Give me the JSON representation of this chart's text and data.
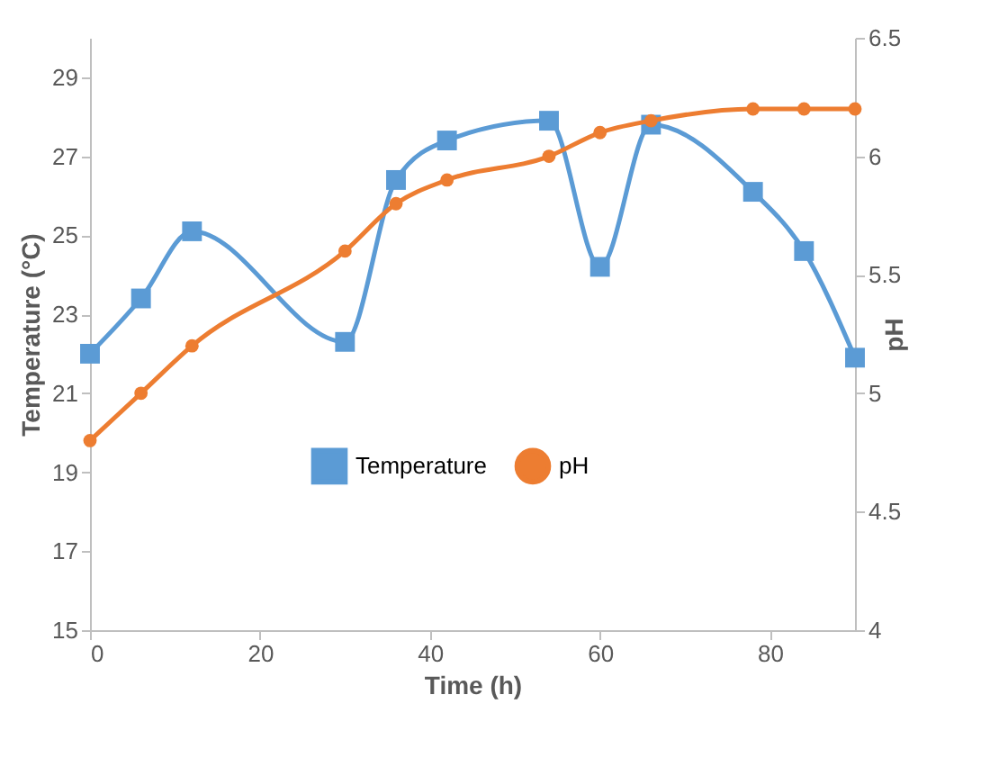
{
  "chart_data": {
    "type": "line",
    "xlabel": "Time (h)",
    "ylabel": "Temperature (°C)",
    "y2label": "pH",
    "x": [
      0,
      6,
      12,
      30,
      36,
      42,
      54,
      60,
      66,
      78,
      84,
      90
    ],
    "series": [
      {
        "name": "Temperature",
        "color": "#5b9bd5",
        "marker": "square",
        "values": [
          22,
          23.4,
          25.1,
          22.3,
          26.4,
          27.4,
          27.9,
          24.2,
          27.8,
          26.1,
          24.6,
          21.9
        ]
      },
      {
        "name": "pH",
        "color": "#ed7d31",
        "marker": "circle",
        "axis": "y2",
        "values": [
          4.8,
          5.0,
          5.2,
          5.6,
          5.8,
          5.9,
          6.0,
          6.1,
          6.15,
          6.2,
          6.2,
          6.2
        ]
      }
    ],
    "xlim": [
      0,
      90
    ],
    "xticks": [
      0,
      20,
      40,
      60,
      80
    ],
    "ylim": [
      15,
      30
    ],
    "yticks": [
      15,
      17,
      19,
      21,
      23,
      25,
      27,
      29
    ],
    "y2lim": [
      4,
      6.5
    ],
    "y2ticks": [
      4,
      4.5,
      5,
      5.5,
      6,
      6.5
    ],
    "grid": false,
    "legend": "center"
  }
}
